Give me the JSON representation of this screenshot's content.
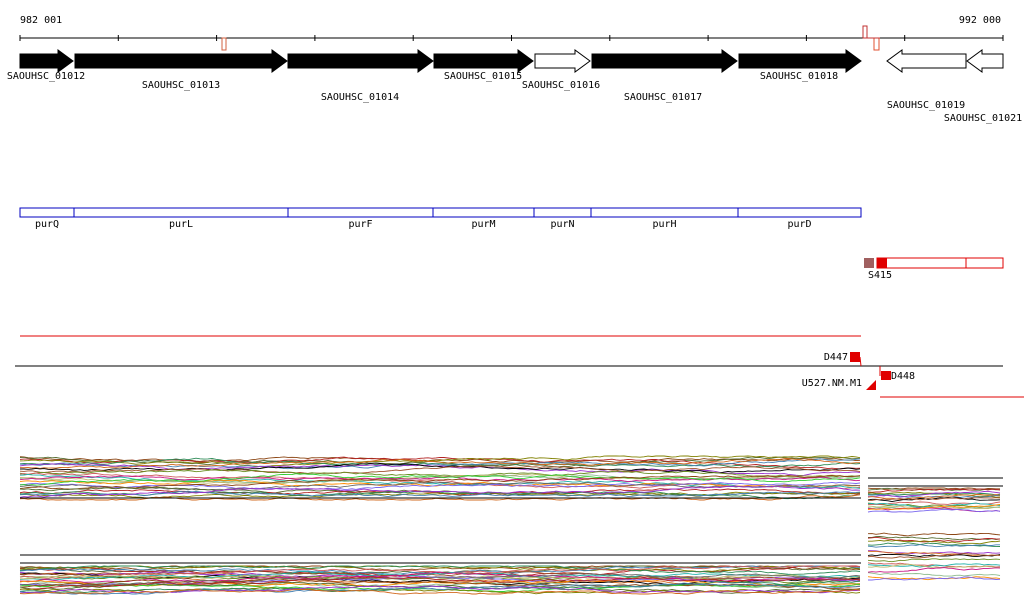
{
  "ruler": {
    "start": "982 001",
    "end": "992 000"
  },
  "genes": [
    {
      "label": "SAOUHSC_01012"
    },
    {
      "label": "SAOUHSC_01013"
    },
    {
      "label": "SAOUHSC_01014"
    },
    {
      "label": "SAOUHSC_01015"
    },
    {
      "label": "SAOUHSC_01016"
    },
    {
      "label": "SAOUHSC_01017"
    },
    {
      "label": "SAOUHSC_01018"
    },
    {
      "label": "SAOUHSC_01019"
    },
    {
      "label": "SAOUHSC_01021"
    }
  ],
  "operons": [
    {
      "label": "purQ"
    },
    {
      "label": "purL"
    },
    {
      "label": "purF"
    },
    {
      "label": "purM"
    },
    {
      "label": "purN"
    },
    {
      "label": "purH"
    },
    {
      "label": "purD"
    }
  ],
  "segments": [
    {
      "label": "S415"
    },
    {
      "label": "D447"
    },
    {
      "label": "D448"
    },
    {
      "label": "U527.NM.M1"
    }
  ]
}
